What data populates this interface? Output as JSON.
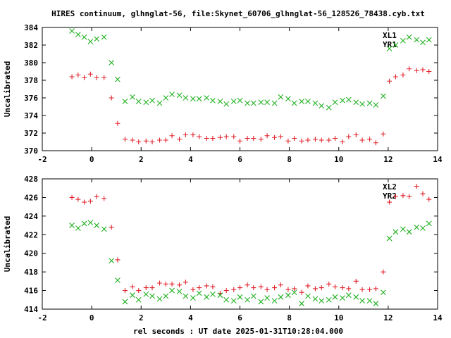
{
  "title": "HIRES continuum, glhnglat-56, file:Skynet_60706_glhnglat-56_128526_78438.cyb.txt",
  "xlabel": "rel seconds : UT date 2025-01-31T10:28:04.000",
  "colors": {
    "red": "#e0202a",
    "green": "#20b020"
  },
  "chart_data": [
    {
      "type": "scatter",
      "ylabel": "Uncalibrated",
      "xlim": [
        -2,
        14
      ],
      "ylim": [
        370,
        384
      ],
      "xticks": [
        "-2",
        "0",
        "2",
        "4",
        "6",
        "8",
        "10",
        "12",
        "14"
      ],
      "yticks": [
        "370",
        "372",
        "374",
        "376",
        "378",
        "380",
        "382",
        "384"
      ],
      "legend": "top-right",
      "series": [
        {
          "name": "XL1",
          "marker": "x",
          "color": "#20b020",
          "points": [
            [
              -0.8,
              383.6
            ],
            [
              -0.55,
              383.2
            ],
            [
              -0.3,
              382.9
            ],
            [
              -0.05,
              382.4
            ],
            [
              0.2,
              382.7
            ],
            [
              0.5,
              382.9
            ],
            [
              0.8,
              380.0
            ],
            [
              1.05,
              378.1
            ],
            [
              1.35,
              375.6
            ],
            [
              1.65,
              376.1
            ],
            [
              1.9,
              375.6
            ],
            [
              2.2,
              375.5
            ],
            [
              2.45,
              375.7
            ],
            [
              2.75,
              375.4
            ],
            [
              3.0,
              376.0
            ],
            [
              3.25,
              376.4
            ],
            [
              3.55,
              376.3
            ],
            [
              3.8,
              376.0
            ],
            [
              4.1,
              375.9
            ],
            [
              4.35,
              375.9
            ],
            [
              4.65,
              376.0
            ],
            [
              4.9,
              375.7
            ],
            [
              5.2,
              375.6
            ],
            [
              5.45,
              375.3
            ],
            [
              5.75,
              375.6
            ],
            [
              6.0,
              375.7
            ],
            [
              6.3,
              375.4
            ],
            [
              6.55,
              375.4
            ],
            [
              6.85,
              375.5
            ],
            [
              7.1,
              375.5
            ],
            [
              7.4,
              375.4
            ],
            [
              7.65,
              376.1
            ],
            [
              7.95,
              375.9
            ],
            [
              8.2,
              375.4
            ],
            [
              8.5,
              375.6
            ],
            [
              8.75,
              375.6
            ],
            [
              9.05,
              375.4
            ],
            [
              9.3,
              375.1
            ],
            [
              9.6,
              374.9
            ],
            [
              9.85,
              375.5
            ],
            [
              10.15,
              375.7
            ],
            [
              10.4,
              375.8
            ],
            [
              10.7,
              375.5
            ],
            [
              10.95,
              375.3
            ],
            [
              11.25,
              375.4
            ],
            [
              11.5,
              375.2
            ],
            [
              11.8,
              376.2
            ],
            [
              12.05,
              381.6
            ],
            [
              12.3,
              382.0
            ],
            [
              12.6,
              382.5
            ],
            [
              12.85,
              382.9
            ],
            [
              13.15,
              382.6
            ],
            [
              13.4,
              382.3
            ],
            [
              13.65,
              382.6
            ]
          ]
        },
        {
          "name": "YR1",
          "marker": "+",
          "color": "#e0202a",
          "points": [
            [
              -0.8,
              378.4
            ],
            [
              -0.55,
              378.6
            ],
            [
              -0.3,
              378.3
            ],
            [
              -0.05,
              378.7
            ],
            [
              0.2,
              378.3
            ],
            [
              0.5,
              378.3
            ],
            [
              0.8,
              376.0
            ],
            [
              1.05,
              373.1
            ],
            [
              1.35,
              371.3
            ],
            [
              1.65,
              371.2
            ],
            [
              1.9,
              371.0
            ],
            [
              2.2,
              371.1
            ],
            [
              2.45,
              371.0
            ],
            [
              2.75,
              371.2
            ],
            [
              3.0,
              371.2
            ],
            [
              3.25,
              371.7
            ],
            [
              3.55,
              371.3
            ],
            [
              3.8,
              371.8
            ],
            [
              4.1,
              371.8
            ],
            [
              4.35,
              371.6
            ],
            [
              4.65,
              371.4
            ],
            [
              4.9,
              371.4
            ],
            [
              5.2,
              371.5
            ],
            [
              5.45,
              371.6
            ],
            [
              5.75,
              371.6
            ],
            [
              6.0,
              371.1
            ],
            [
              6.3,
              371.4
            ],
            [
              6.55,
              371.4
            ],
            [
              6.85,
              371.3
            ],
            [
              7.1,
              371.7
            ],
            [
              7.4,
              371.5
            ],
            [
              7.65,
              371.6
            ],
            [
              7.95,
              371.1
            ],
            [
              8.2,
              371.4
            ],
            [
              8.5,
              371.1
            ],
            [
              8.75,
              371.2
            ],
            [
              9.05,
              371.3
            ],
            [
              9.3,
              371.2
            ],
            [
              9.6,
              371.2
            ],
            [
              9.85,
              371.4
            ],
            [
              10.15,
              371.0
            ],
            [
              10.4,
              371.6
            ],
            [
              10.7,
              371.8
            ],
            [
              10.95,
              371.2
            ],
            [
              11.25,
              371.3
            ],
            [
              11.5,
              370.9
            ],
            [
              11.8,
              371.9
            ],
            [
              12.05,
              377.9
            ],
            [
              12.3,
              378.4
            ],
            [
              12.6,
              378.6
            ],
            [
              12.85,
              379.3
            ],
            [
              13.15,
              379.1
            ],
            [
              13.4,
              379.2
            ],
            [
              13.65,
              379.0
            ]
          ]
        }
      ]
    },
    {
      "type": "scatter",
      "ylabel": "Uncalibrated",
      "xlim": [
        -2,
        14
      ],
      "ylim": [
        414,
        428
      ],
      "xticks": [
        "-2",
        "0",
        "2",
        "4",
        "6",
        "8",
        "10",
        "12",
        "14"
      ],
      "yticks": [
        "414",
        "416",
        "418",
        "420",
        "422",
        "424",
        "426",
        "428"
      ],
      "legend": "top-right",
      "series": [
        {
          "name": "XL2",
          "marker": "+",
          "color": "#e0202a",
          "points": [
            [
              -0.8,
              426.0
            ],
            [
              -0.55,
              425.8
            ],
            [
              -0.3,
              425.5
            ],
            [
              -0.05,
              425.6
            ],
            [
              0.2,
              426.1
            ],
            [
              0.5,
              425.9
            ],
            [
              0.8,
              422.8
            ],
            [
              1.05,
              419.3
            ],
            [
              1.35,
              416.0
            ],
            [
              1.65,
              416.4
            ],
            [
              1.9,
              416.0
            ],
            [
              2.2,
              416.3
            ],
            [
              2.45,
              416.3
            ],
            [
              2.75,
              416.8
            ],
            [
              3.0,
              416.7
            ],
            [
              3.25,
              416.7
            ],
            [
              3.55,
              416.6
            ],
            [
              3.8,
              416.9
            ],
            [
              4.1,
              416.1
            ],
            [
              4.35,
              416.3
            ],
            [
              4.65,
              416.5
            ],
            [
              4.9,
              416.4
            ],
            [
              5.2,
              415.7
            ],
            [
              5.45,
              416.0
            ],
            [
              5.75,
              416.1
            ],
            [
              6.0,
              416.3
            ],
            [
              6.3,
              416.6
            ],
            [
              6.55,
              416.3
            ],
            [
              6.85,
              416.4
            ],
            [
              7.1,
              416.1
            ],
            [
              7.4,
              416.3
            ],
            [
              7.65,
              416.6
            ],
            [
              7.95,
              416.1
            ],
            [
              8.2,
              416.2
            ],
            [
              8.5,
              415.8
            ],
            [
              8.75,
              416.5
            ],
            [
              9.05,
              416.2
            ],
            [
              9.3,
              416.3
            ],
            [
              9.6,
              416.7
            ],
            [
              9.85,
              416.4
            ],
            [
              10.15,
              416.3
            ],
            [
              10.4,
              416.2
            ],
            [
              10.7,
              417.0
            ],
            [
              10.95,
              416.1
            ],
            [
              11.25,
              416.1
            ],
            [
              11.5,
              416.2
            ],
            [
              11.8,
              418.0
            ],
            [
              12.05,
              425.5
            ],
            [
              12.3,
              426.1
            ],
            [
              12.6,
              426.2
            ],
            [
              12.85,
              426.1
            ],
            [
              13.15,
              427.2
            ],
            [
              13.4,
              426.4
            ],
            [
              13.65,
              425.8
            ]
          ]
        },
        {
          "name": "YR2",
          "marker": "x",
          "color": "#20b020",
          "points": [
            [
              -0.8,
              423.0
            ],
            [
              -0.55,
              422.7
            ],
            [
              -0.3,
              423.2
            ],
            [
              -0.05,
              423.3
            ],
            [
              0.2,
              423.0
            ],
            [
              0.5,
              422.6
            ],
            [
              0.8,
              419.2
            ],
            [
              1.05,
              417.1
            ],
            [
              1.35,
              414.8
            ],
            [
              1.65,
              415.5
            ],
            [
              1.9,
              415.0
            ],
            [
              2.2,
              415.6
            ],
            [
              2.45,
              415.4
            ],
            [
              2.75,
              415.1
            ],
            [
              3.0,
              415.4
            ],
            [
              3.25,
              416.0
            ],
            [
              3.55,
              415.9
            ],
            [
              3.8,
              415.4
            ],
            [
              4.1,
              415.2
            ],
            [
              4.35,
              415.7
            ],
            [
              4.65,
              415.3
            ],
            [
              4.9,
              415.6
            ],
            [
              5.2,
              415.5
            ],
            [
              5.45,
              415.0
            ],
            [
              5.75,
              414.9
            ],
            [
              6.0,
              415.3
            ],
            [
              6.3,
              415.0
            ],
            [
              6.55,
              415.4
            ],
            [
              6.85,
              414.8
            ],
            [
              7.1,
              415.2
            ],
            [
              7.4,
              414.9
            ],
            [
              7.65,
              415.3
            ],
            [
              7.95,
              415.5
            ],
            [
              8.2,
              415.8
            ],
            [
              8.5,
              414.6
            ],
            [
              8.75,
              415.4
            ],
            [
              9.05,
              415.1
            ],
            [
              9.3,
              414.9
            ],
            [
              9.6,
              415.0
            ],
            [
              9.85,
              415.3
            ],
            [
              10.15,
              415.2
            ],
            [
              10.4,
              415.5
            ],
            [
              10.7,
              415.3
            ],
            [
              10.95,
              414.9
            ],
            [
              11.25,
              414.9
            ],
            [
              11.5,
              414.6
            ],
            [
              11.8,
              415.8
            ],
            [
              12.05,
              421.6
            ],
            [
              12.3,
              422.3
            ],
            [
              12.6,
              422.6
            ],
            [
              12.85,
              422.3
            ],
            [
              13.15,
              422.8
            ],
            [
              13.4,
              422.7
            ],
            [
              13.65,
              423.2
            ]
          ]
        }
      ]
    }
  ]
}
